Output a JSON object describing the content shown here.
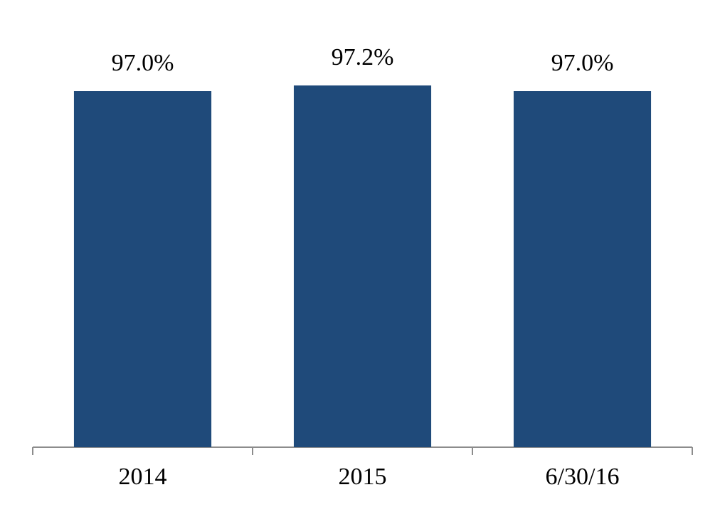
{
  "chart_data": {
    "type": "bar",
    "categories": [
      "2014",
      "2015",
      "6/30/16"
    ],
    "values": [
      97.0,
      97.2,
      97.0
    ],
    "value_labels": [
      "97.0%",
      "97.2%",
      "97.0%"
    ],
    "color": "#1f4a7a",
    "ylim": [
      84.5,
      98.5
    ]
  }
}
